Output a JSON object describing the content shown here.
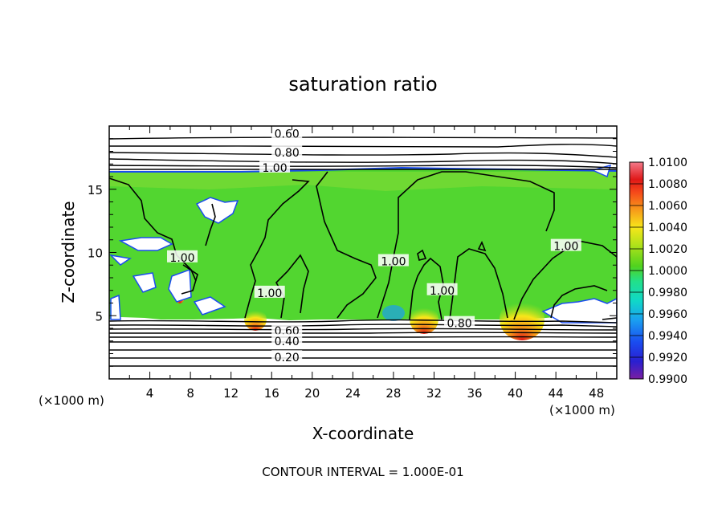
{
  "chart_data": {
    "type": "heatmap",
    "title": "saturation ratio",
    "xlabel": "X-coordinate",
    "ylabel": "Z-coordinate",
    "x_unit": "(×1000 m)",
    "y_unit": "(×1000 m)",
    "xlim": [
      0,
      50
    ],
    "ylim": [
      0,
      20
    ],
    "x_ticks": [
      4,
      8,
      12,
      16,
      20,
      24,
      28,
      32,
      36,
      40,
      44,
      48
    ],
    "y_ticks": [
      5,
      10,
      15
    ],
    "footer": "CONTOUR INTERVAL = 1.000E-01",
    "contour_labels": [
      {
        "text": "0.60",
        "x": 17.5,
        "y": 19.4
      },
      {
        "text": "0.80",
        "x": 17.5,
        "y": 17.9
      },
      {
        "text": "1.00",
        "x": 16.3,
        "y": 16.7
      },
      {
        "text": "1.00",
        "x": 7.2,
        "y": 9.6
      },
      {
        "text": "1.00",
        "x": 15.8,
        "y": 6.8
      },
      {
        "text": "1.00",
        "x": 28.0,
        "y": 9.3
      },
      {
        "text": "1.00",
        "x": 32.8,
        "y": 7.0
      },
      {
        "text": "1.00",
        "x": 45.0,
        "y": 10.5
      },
      {
        "text": "0.80",
        "x": 34.5,
        "y": 4.4
      },
      {
        "text": "0.60",
        "x": 17.5,
        "y": 3.8
      },
      {
        "text": "0.40",
        "x": 17.5,
        "y": 3.0
      },
      {
        "text": "0.20",
        "x": 17.5,
        "y": 1.7
      }
    ],
    "colorbar": {
      "min": 0.99,
      "max": 1.01,
      "tick_labels": [
        "0.9900",
        "0.9920",
        "0.9940",
        "0.9960",
        "0.9980",
        "1.0000",
        "1.0020",
        "1.0040",
        "1.0060",
        "1.0080",
        "1.0100"
      ],
      "colors": [
        "#7a1fa2",
        "#2a1fd0",
        "#1a4cf0",
        "#1a9ef0",
        "#10d8c8",
        "#22e08a",
        "#50d21e",
        "#b2e21a",
        "#f7e61a",
        "#f79a1a",
        "#f54a1a",
        "#e01818",
        "#f37a8a"
      ]
    },
    "colors": {
      "background": "#ffffff",
      "field_main": "#52d630",
      "field_light": "#86dc36",
      "subsaturated": "#ffffff",
      "contour": "#000000"
    }
  }
}
